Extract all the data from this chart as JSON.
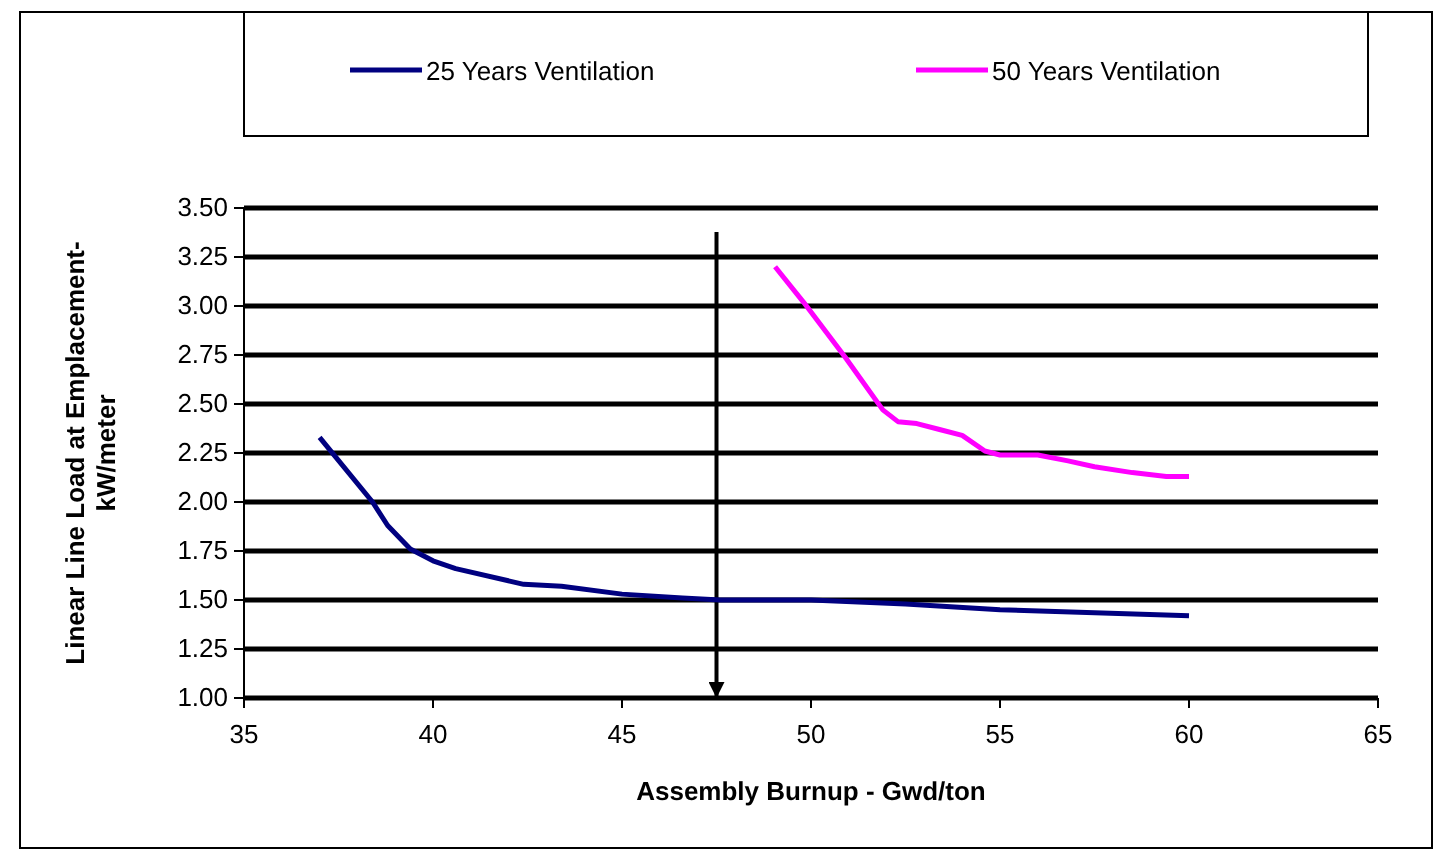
{
  "chart_data": {
    "type": "line",
    "xlabel": "Assembly Burnup - Gwd/ton",
    "ylabel": "Linear Line Load at Emplacement-\nkW/meter",
    "xlim": [
      35,
      65
    ],
    "xticks": [
      35,
      40,
      45,
      50,
      55,
      60,
      65
    ],
    "ylim": [
      1,
      3.5
    ],
    "yticks": [
      {
        "value": 1,
        "label": "1.00"
      },
      {
        "value": 1.25,
        "label": "1.25"
      },
      {
        "value": 1.5,
        "label": "1.50"
      },
      {
        "value": 1.75,
        "label": "1.75"
      },
      {
        "value": 2,
        "label": "2.00"
      },
      {
        "value": 2.25,
        "label": "2.25"
      },
      {
        "value": 2.5,
        "label": "2.50"
      },
      {
        "value": 2.75,
        "label": "2.75"
      },
      {
        "value": 3,
        "label": "3.00"
      },
      {
        "value": 3.25,
        "label": "3.25"
      },
      {
        "value": 3.5,
        "label": "3.50"
      }
    ],
    "grid": "y",
    "legend": "top",
    "marker": "none",
    "line_style": "solid",
    "ref_lines": [
      {
        "axis": "x",
        "value": 47.5,
        "label": null,
        "color": "#000000"
      }
    ],
    "series": [
      {
        "name": "25 Years Ventilation",
        "color": "#000080",
        "x": [
          37,
          38.4,
          38.8,
          39.4,
          40,
          40.6,
          42.4,
          43.4,
          45,
          46.6,
          47.6,
          50,
          52.5,
          55,
          60
        ],
        "values": [
          2.33,
          2,
          1.88,
          1.76,
          1.7,
          1.66,
          1.58,
          1.57,
          1.53,
          1.51,
          1.5,
          1.5,
          1.48,
          1.45,
          1.42
        ]
      },
      {
        "name": "50 Years Ventilation",
        "color": "#ff00ff",
        "x": [
          49.05,
          49.8,
          50.9,
          51.9,
          52.3,
          52.8,
          53.4,
          54,
          54.6,
          55,
          56,
          56.8,
          57.5,
          58.5,
          59.4,
          60
        ],
        "values": [
          3.2,
          3.02,
          2.74,
          2.47,
          2.41,
          2.4,
          2.37,
          2.34,
          2.26,
          2.24,
          2.24,
          2.21,
          2.18,
          2.15,
          2.13,
          2.13
        ]
      }
    ]
  }
}
